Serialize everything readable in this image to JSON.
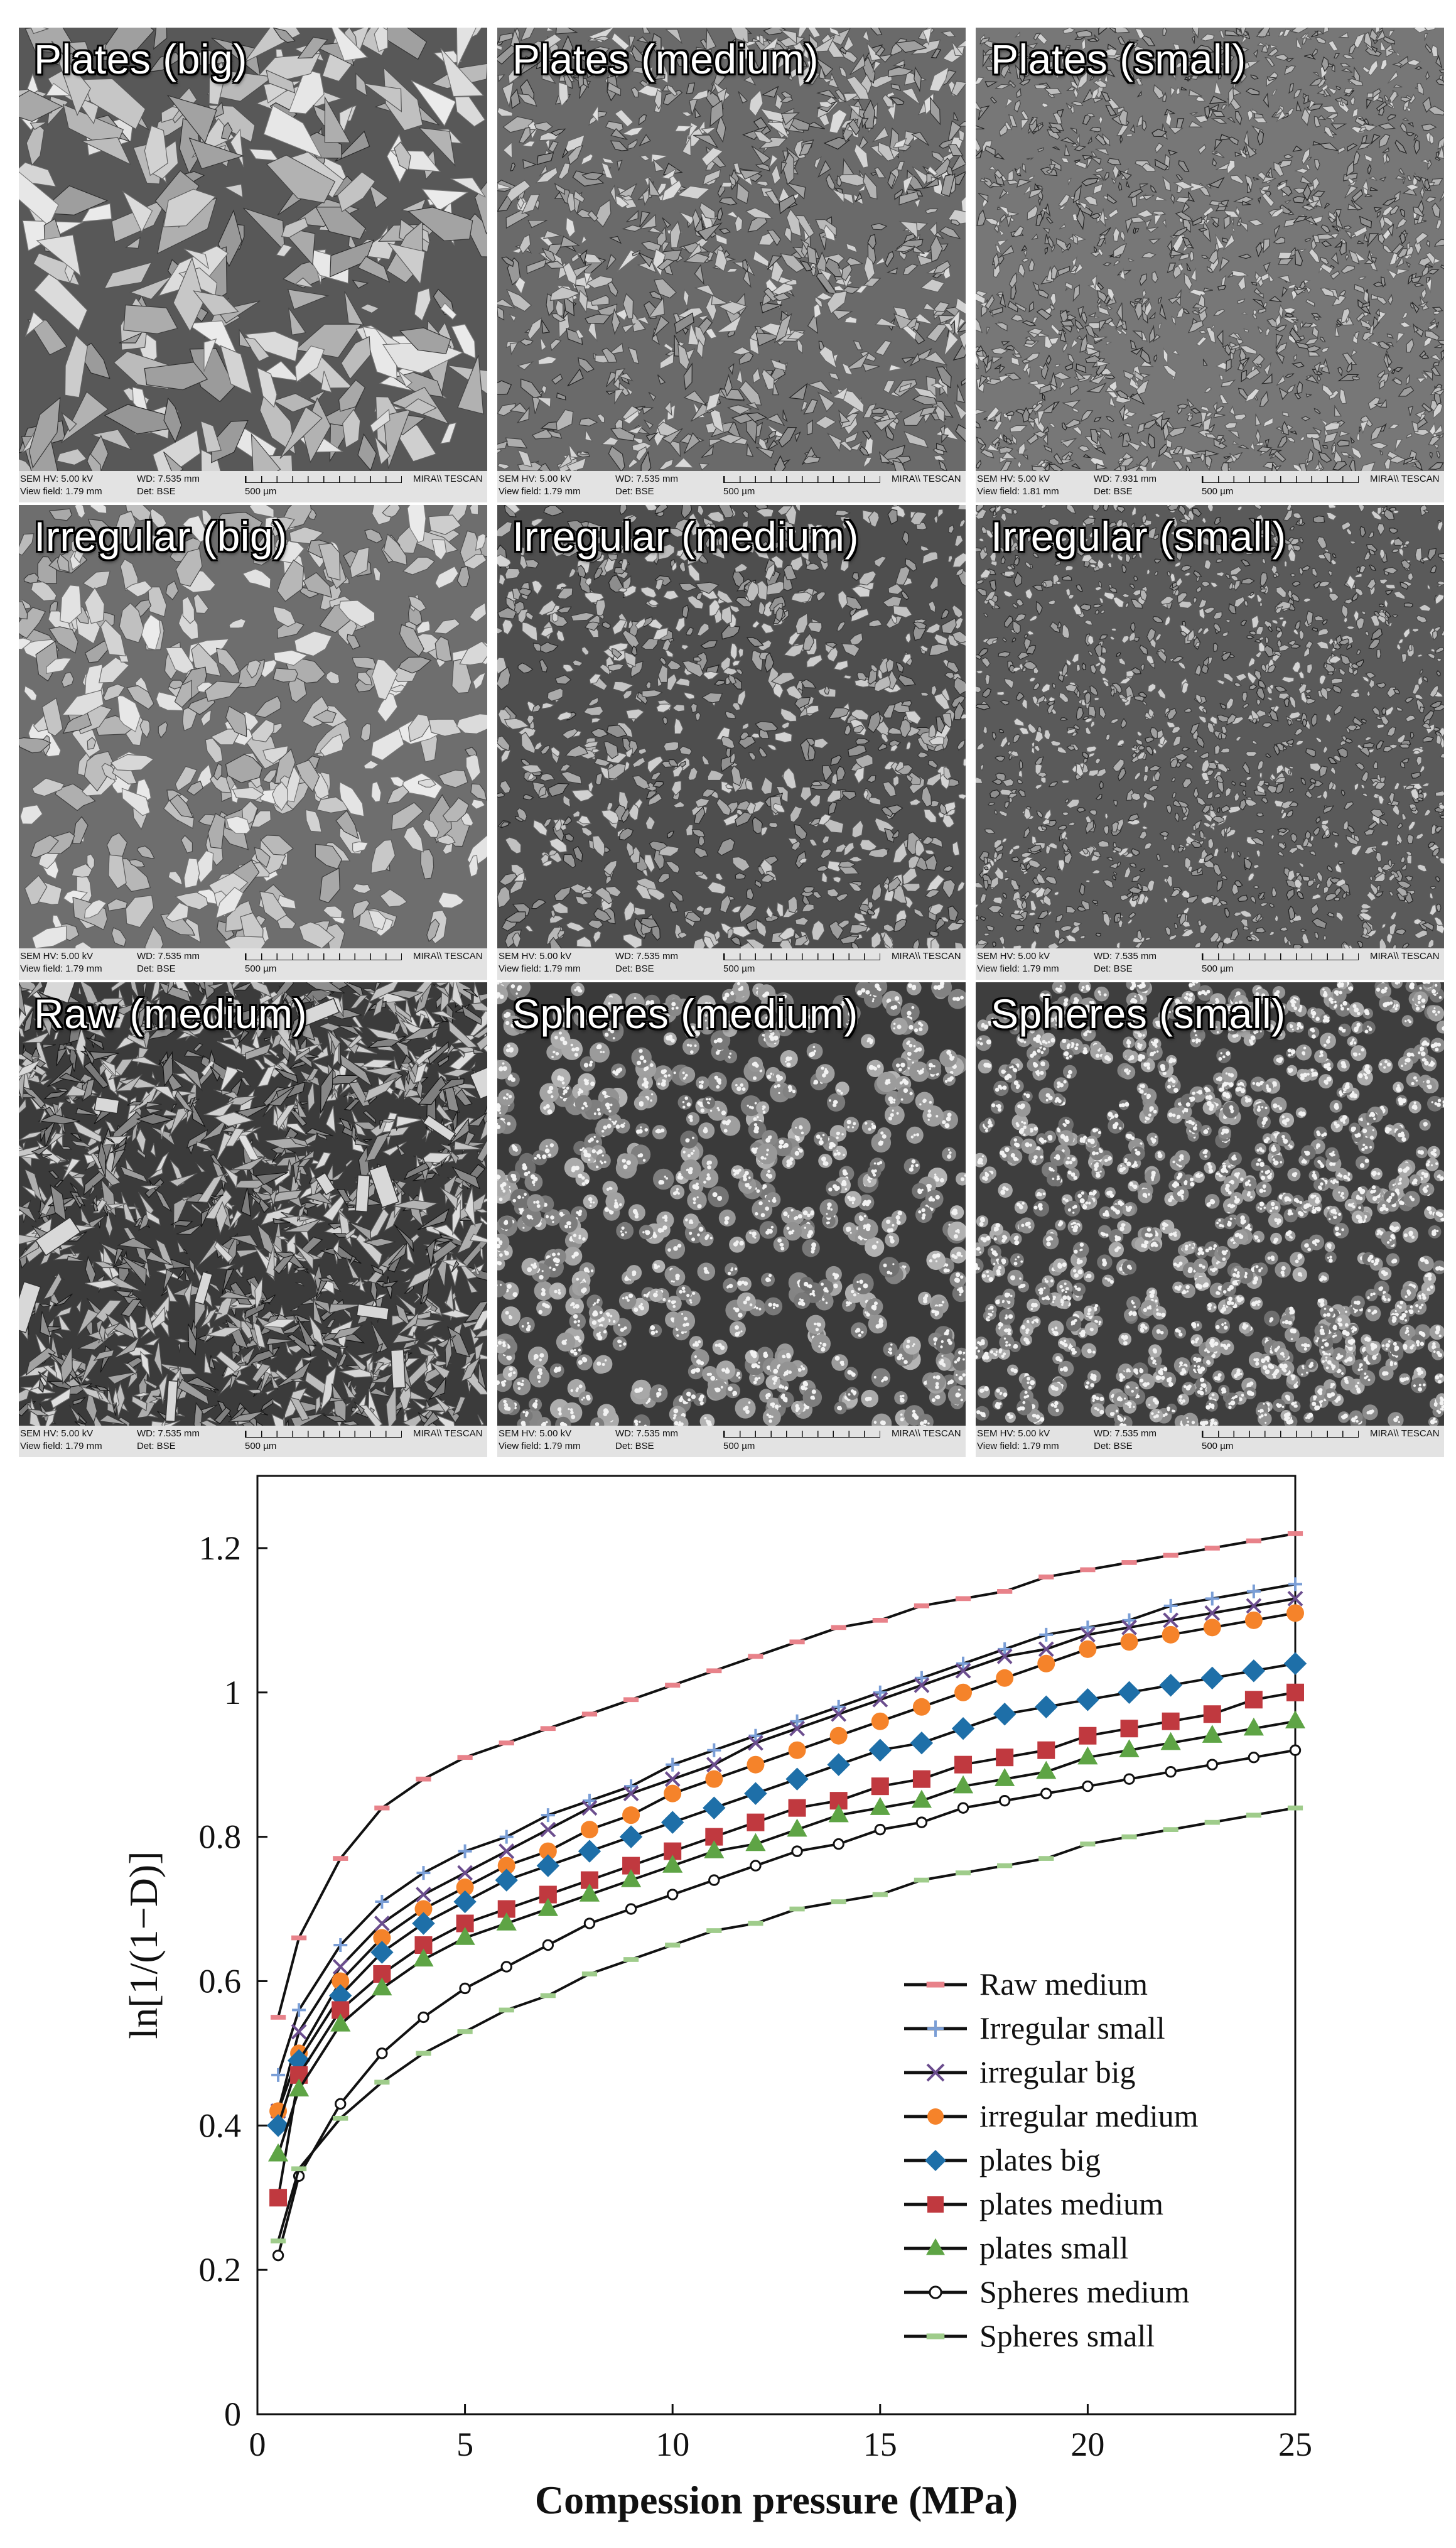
{
  "sem_panels": [
    {
      "title": "Plates (big)",
      "hv": "SEM HV: 5.00 kV",
      "wd": "WD: 7.535 mm",
      "vf": "View field: 1.79 mm",
      "det": "Det: BSE",
      "scale": "500 µm",
      "brand": "MIRA\\\\ TESCAN",
      "texture": "plates-big"
    },
    {
      "title": "Plates (medium)",
      "hv": "SEM HV: 5.00 kV",
      "wd": "WD: 7.535 mm",
      "vf": "View field: 1.79 mm",
      "det": "Det: BSE",
      "scale": "500 µm",
      "brand": "MIRA\\\\ TESCAN",
      "texture": "plates-medium"
    },
    {
      "title": "Plates (small)",
      "hv": "SEM HV: 5.00 kV",
      "wd": "WD: 7.931 mm",
      "vf": "View field: 1.81 mm",
      "det": "Det: BSE",
      "scale": "500 µm",
      "brand": "MIRA\\\\ TESCAN",
      "texture": "plates-small"
    },
    {
      "title": "Irregular (big)",
      "hv": "SEM HV: 5.00 kV",
      "wd": "WD: 7.535 mm",
      "vf": "View field: 1.79 mm",
      "det": "Det: BSE",
      "scale": "500 µm",
      "brand": "MIRA\\\\ TESCAN",
      "texture": "irregular-big"
    },
    {
      "title": "Irregular (medium)",
      "hv": "SEM HV: 5.00 kV",
      "wd": "WD: 7.535 mm",
      "vf": "View field: 1.79 mm",
      "det": "Det: BSE",
      "scale": "500 µm",
      "brand": "MIRA\\\\ TESCAN",
      "texture": "irregular-medium"
    },
    {
      "title": "Irregular (small)",
      "hv": "SEM HV: 5.00 kV",
      "wd": "WD: 7.535 mm",
      "vf": "View field: 1.79 mm",
      "det": "Det: BSE",
      "scale": "500 µm",
      "brand": "MIRA\\\\ TESCAN",
      "texture": "irregular-small"
    },
    {
      "title": "Raw (medium)",
      "hv": "SEM HV: 5.00 kV",
      "wd": "WD: 7.535 mm",
      "vf": "View field: 1.79 mm",
      "det": "Det: BSE",
      "scale": "500 µm",
      "brand": "MIRA\\\\ TESCAN",
      "texture": "raw-medium"
    },
    {
      "title": "Spheres (medium)",
      "hv": "SEM HV: 5.00 kV",
      "wd": "WD: 7.535 mm",
      "vf": "View field: 1.79 mm",
      "det": "Det: BSE",
      "scale": "500 µm",
      "brand": "MIRA\\\\ TESCAN",
      "texture": "spheres-medium"
    },
    {
      "title": "Spheres (small)",
      "hv": "SEM HV: 5.00 kV",
      "wd": "WD: 7.535 mm",
      "vf": "View field: 1.79 mm",
      "det": "Det: BSE",
      "scale": "500 µm",
      "brand": "MIRA\\\\ TESCAN",
      "texture": "spheres-small"
    }
  ],
  "chart_data": {
    "type": "line",
    "title": "",
    "xlabel": "Compession pressure (MPa)",
    "ylabel": "ln[1/(1−D)]",
    "xlim": [
      0,
      25
    ],
    "ylim": [
      0,
      1.3
    ],
    "x_ticks": [
      0,
      5,
      10,
      15,
      20,
      25
    ],
    "y_ticks": [
      0,
      0.2,
      0.4,
      0.6,
      0.8,
      1,
      1.2
    ],
    "x_tick_labels": [
      "0",
      "5",
      "10",
      "15",
      "20",
      "25"
    ],
    "y_tick_labels": [
      "0",
      "0.2",
      "0.4",
      "0.6",
      "0.8",
      "1",
      "1.2"
    ],
    "grid": false,
    "legend_position": "bottom-right",
    "x": [
      0.5,
      1,
      2,
      3,
      4,
      5,
      6,
      7,
      8,
      9,
      10,
      11,
      12,
      13,
      14,
      15,
      16,
      17,
      18,
      19,
      20,
      21,
      22,
      23,
      24,
      25
    ],
    "series": [
      {
        "name": "Raw medium",
        "color": "#e8828a",
        "marker": "dash",
        "values": [
          0.55,
          0.66,
          0.77,
          0.84,
          0.88,
          0.91,
          0.93,
          0.95,
          0.97,
          0.99,
          1.01,
          1.03,
          1.05,
          1.07,
          1.09,
          1.1,
          1.12,
          1.13,
          1.14,
          1.16,
          1.17,
          1.18,
          1.19,
          1.2,
          1.21,
          1.22
        ]
      },
      {
        "name": "Irregular small",
        "color": "#7a9ed6",
        "marker": "plus",
        "values": [
          0.47,
          0.56,
          0.65,
          0.71,
          0.75,
          0.78,
          0.8,
          0.83,
          0.85,
          0.87,
          0.9,
          0.92,
          0.94,
          0.96,
          0.98,
          1.0,
          1.02,
          1.04,
          1.06,
          1.08,
          1.09,
          1.1,
          1.12,
          1.13,
          1.14,
          1.15
        ]
      },
      {
        "name": "irregular big",
        "color": "#6b4d8e",
        "marker": "x",
        "values": [
          0.42,
          0.53,
          0.62,
          0.68,
          0.72,
          0.75,
          0.78,
          0.81,
          0.84,
          0.86,
          0.88,
          0.9,
          0.93,
          0.95,
          0.97,
          0.99,
          1.01,
          1.03,
          1.05,
          1.06,
          1.08,
          1.09,
          1.1,
          1.11,
          1.12,
          1.13
        ]
      },
      {
        "name": "irregular medium",
        "color": "#f5832a",
        "marker": "circle",
        "values": [
          0.42,
          0.5,
          0.6,
          0.66,
          0.7,
          0.73,
          0.76,
          0.78,
          0.81,
          0.83,
          0.86,
          0.88,
          0.9,
          0.92,
          0.94,
          0.96,
          0.98,
          1.0,
          1.02,
          1.04,
          1.06,
          1.07,
          1.08,
          1.09,
          1.1,
          1.11
        ]
      },
      {
        "name": "plates big",
        "color": "#1e6fa8",
        "marker": "diamond",
        "values": [
          0.4,
          0.49,
          0.58,
          0.64,
          0.68,
          0.71,
          0.74,
          0.76,
          0.78,
          0.8,
          0.82,
          0.84,
          0.86,
          0.88,
          0.9,
          0.92,
          0.93,
          0.95,
          0.97,
          0.98,
          0.99,
          1.0,
          1.01,
          1.02,
          1.03,
          1.04
        ]
      },
      {
        "name": "plates medium",
        "color": "#c0393f",
        "marker": "square",
        "values": [
          0.3,
          0.47,
          0.56,
          0.61,
          0.65,
          0.68,
          0.7,
          0.72,
          0.74,
          0.76,
          0.78,
          0.8,
          0.82,
          0.84,
          0.85,
          0.87,
          0.88,
          0.9,
          0.91,
          0.92,
          0.94,
          0.95,
          0.96,
          0.97,
          0.99,
          1.0
        ]
      },
      {
        "name": "plates small",
        "color": "#5ea445",
        "marker": "triangle",
        "values": [
          0.36,
          0.45,
          0.54,
          0.59,
          0.63,
          0.66,
          0.68,
          0.7,
          0.72,
          0.74,
          0.76,
          0.78,
          0.79,
          0.81,
          0.83,
          0.84,
          0.85,
          0.87,
          0.88,
          0.89,
          0.91,
          0.92,
          0.93,
          0.94,
          0.95,
          0.96
        ]
      },
      {
        "name": "Spheres medium",
        "color": "#222222",
        "marker": "open-circle",
        "values": [
          0.22,
          0.33,
          0.43,
          0.5,
          0.55,
          0.59,
          0.62,
          0.65,
          0.68,
          0.7,
          0.72,
          0.74,
          0.76,
          0.78,
          0.79,
          0.81,
          0.82,
          0.84,
          0.85,
          0.86,
          0.87,
          0.88,
          0.89,
          0.9,
          0.91,
          0.92
        ]
      },
      {
        "name": "Spheres small",
        "color": "#9fcc8b",
        "marker": "dash",
        "values": [
          0.24,
          0.34,
          0.41,
          0.46,
          0.5,
          0.53,
          0.56,
          0.58,
          0.61,
          0.63,
          0.65,
          0.67,
          0.68,
          0.7,
          0.71,
          0.72,
          0.74,
          0.75,
          0.76,
          0.77,
          0.79,
          0.8,
          0.81,
          0.82,
          0.83,
          0.84
        ]
      }
    ]
  }
}
